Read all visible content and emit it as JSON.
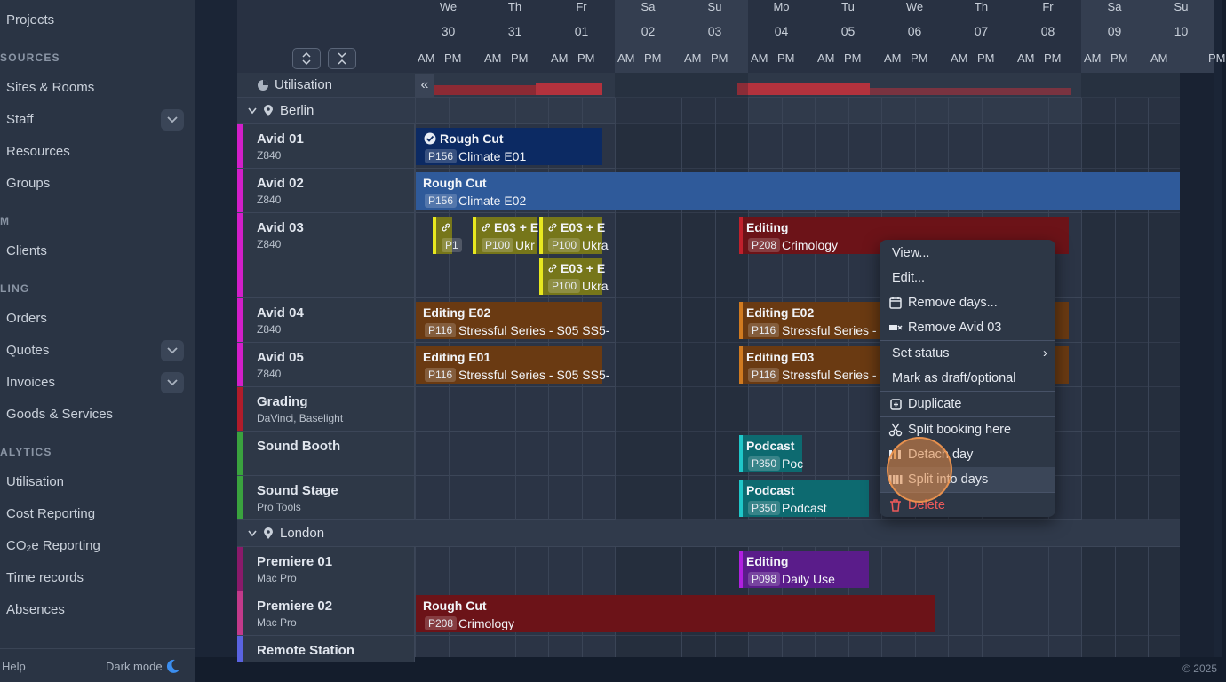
{
  "sidebar": {
    "items": [
      {
        "label": "Projects"
      },
      {
        "section": "SOURCES"
      },
      {
        "label": "Sites & Rooms"
      },
      {
        "label": "Staff"
      },
      {
        "label": "Resources"
      },
      {
        "label": "Groups"
      },
      {
        "section": "M"
      },
      {
        "label": "Clients"
      },
      {
        "section": "LING"
      },
      {
        "label": "Orders"
      },
      {
        "label": "Quotes"
      },
      {
        "label": "Invoices"
      },
      {
        "label": "Goods & Services"
      },
      {
        "section": "ALYTICS"
      },
      {
        "label": "Utilisation"
      },
      {
        "label": "Cost Reporting"
      },
      {
        "label": "CO₂e Reporting"
      },
      {
        "label": "Time records"
      },
      {
        "label": "Absences"
      }
    ],
    "help": "Help",
    "dark_mode": "Dark mode"
  },
  "footer": {
    "copyright": "© 2025"
  },
  "calendar": {
    "days": [
      {
        "name": "We",
        "num": "30"
      },
      {
        "name": "Th",
        "num": "31"
      },
      {
        "name": "Fr",
        "num": "01"
      },
      {
        "name": "Sa",
        "num": "02"
      },
      {
        "name": "Su",
        "num": "03"
      },
      {
        "name": "Mo",
        "num": "04"
      },
      {
        "name": "Tu",
        "num": "05"
      },
      {
        "name": "We",
        "num": "06"
      },
      {
        "name": "Th",
        "num": "07"
      },
      {
        "name": "Fr",
        "num": "08"
      },
      {
        "name": "Sa",
        "num": "09"
      },
      {
        "name": "Su",
        "num": "10"
      }
    ],
    "am": "AM",
    "pm": "PM",
    "pm_partial": "PM",
    "utilisation_label": "Utilisation",
    "collapse_symbol": "«",
    "groups": [
      {
        "label": "Berlin"
      },
      {
        "label": "London"
      }
    ],
    "resources": [
      {
        "name": "Avid 01",
        "sub": "Z840"
      },
      {
        "name": "Avid 02",
        "sub": "Z840"
      },
      {
        "name": "Avid 03",
        "sub": "Z840"
      },
      {
        "name": "Avid 04",
        "sub": "Z840"
      },
      {
        "name": "Avid 05",
        "sub": "Z840"
      },
      {
        "name": "Grading",
        "sub": "DaVinci, Baselight"
      },
      {
        "name": "Sound Booth",
        "sub": ""
      },
      {
        "name": "Sound Stage",
        "sub": "Pro Tools"
      },
      {
        "name": "Premiere 01",
        "sub": "Mac Pro"
      },
      {
        "name": "Premiere 02",
        "sub": "Mac Pro"
      },
      {
        "name": "Remote Station",
        "sub": ""
      }
    ],
    "bookings": [
      {
        "title": "Rough Cut",
        "tag": "P156",
        "project": "Climate E01"
      },
      {
        "title": "Rough Cut",
        "tag": "P156",
        "project": "Climate E02"
      },
      {
        "title": "",
        "tag": "P1",
        "project": ""
      },
      {
        "title": "E03 + E",
        "tag": "P100",
        "project": "Ukr"
      },
      {
        "title": "E03 + E",
        "tag": "P100",
        "project": "Ukra"
      },
      {
        "title": "E03 + E",
        "tag": "P100",
        "project": "Ukra"
      },
      {
        "title": "Editing",
        "tag": "P208",
        "project": "Crimology"
      },
      {
        "title": "Editing E02",
        "tag": "P116",
        "project": "Stressful Series - S05 SS5-"
      },
      {
        "title": "Editing E02",
        "tag": "P116",
        "project": "Stressful Series - S"
      },
      {
        "title": "Editing E01",
        "tag": "P116",
        "project": "Stressful Series - S05 SS5-"
      },
      {
        "title": "Editing E03",
        "tag": "P116",
        "project": "Stressful Series - S"
      },
      {
        "title": "Podcast",
        "tag": "P350",
        "project": "Poc"
      },
      {
        "title": "Podcast",
        "tag": "P350",
        "project": "Podcast"
      },
      {
        "title": "Editing",
        "tag": "P098",
        "project": "Daily Use"
      },
      {
        "title": "Rough Cut",
        "tag": "P208",
        "project": "Crimology"
      }
    ]
  },
  "context_menu": {
    "items": [
      {
        "label": "View..."
      },
      {
        "label": "Edit..."
      },
      {
        "label": "Remove days..."
      },
      {
        "label": "Remove Avid 03"
      },
      {
        "label": "Set status"
      },
      {
        "label": "Mark as draft/optional"
      },
      {
        "label": "Duplicate"
      },
      {
        "label": "Split booking here"
      },
      {
        "label": "Detach day"
      },
      {
        "label": "Split into days"
      },
      {
        "label": "Delete"
      }
    ],
    "submenu_arrow": "›"
  }
}
